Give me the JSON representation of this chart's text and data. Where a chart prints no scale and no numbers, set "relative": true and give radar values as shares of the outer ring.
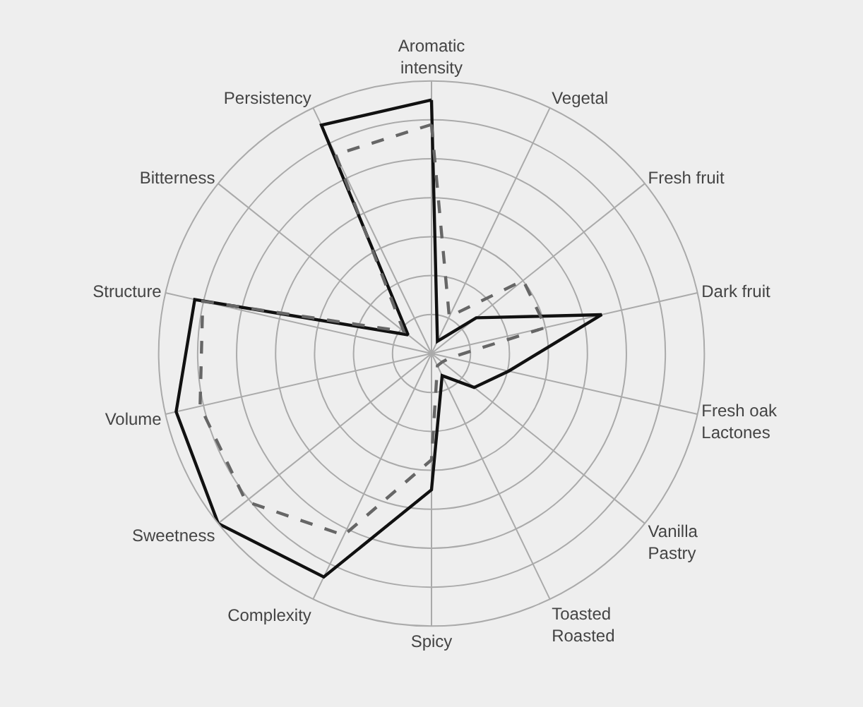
{
  "chart_data": {
    "type": "radar",
    "relative": true,
    "grid": true,
    "marker": "none",
    "categories": [
      "Aromatic\nintensity",
      "Vegetal",
      "Fresh fruit",
      "Dark fruit",
      "Fresh oak\nLactones",
      "Vanilla\nPastry",
      "Toasted\nRoasted",
      "Spicy",
      "Complexity",
      "Sweetness",
      "Volume",
      "Structure",
      "Bitterness",
      "Persistency"
    ],
    "series": [
      {
        "color": "#111111",
        "line_style": "solid",
        "values": [
          0.93,
          0.05,
          0.21,
          0.64,
          0.29,
          0.2,
          0.09,
          0.5,
          0.91,
          1.0,
          0.96,
          0.89,
          0.11,
          0.93
        ]
      },
      {
        "color": "#666666",
        "line_style": "dashed",
        "values": [
          0.84,
          0.15,
          0.43,
          0.43,
          0.07,
          0.05,
          0.05,
          0.39,
          0.74,
          0.87,
          0.87,
          0.86,
          0.13,
          0.81
        ]
      }
    ]
  }
}
